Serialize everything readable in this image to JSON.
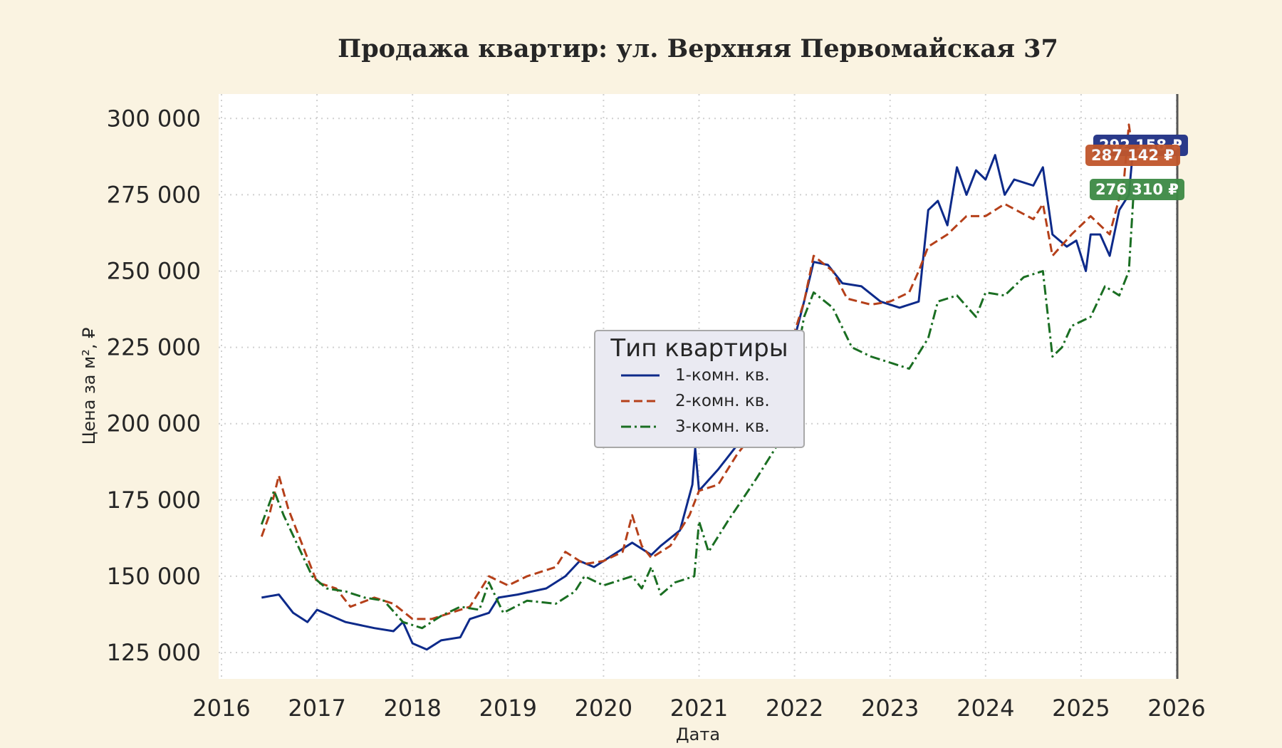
{
  "chart_data": {
    "type": "line",
    "title": "Продажа квартир: ул. Верхняя Первомайская 37",
    "xlabel": "Дата",
    "ylabel": "Цена за м², ₽",
    "xlim": [
      2016,
      2026
    ],
    "ylim": [
      116000,
      305000
    ],
    "xticks": [
      "2016",
      "2017",
      "2018",
      "2019",
      "2020",
      "2021",
      "2022",
      "2023",
      "2024",
      "2025",
      "2026"
    ],
    "yticks": [
      {
        "value": 125000,
        "label": "125 000"
      },
      {
        "value": 150000,
        "label": "150 000"
      },
      {
        "value": 175000,
        "label": "175 000"
      },
      {
        "value": 200000,
        "label": "200 000"
      },
      {
        "value": 225000,
        "label": "225 000"
      },
      {
        "value": 250000,
        "label": "250 000"
      },
      {
        "value": 275000,
        "label": "275 000"
      },
      {
        "value": 300000,
        "label": "300 000"
      }
    ],
    "grid": true,
    "legend": {
      "title": "Тип квартиры",
      "placement": "center"
    },
    "series": [
      {
        "name": "1-комн. кв.",
        "color": "#0d2a8a",
        "dash": "",
        "end_label": "292 158 ₽",
        "end_value": 292000,
        "label_color": "#2a3a8a",
        "points": [
          [
            2016.42,
            143
          ],
          [
            2016.6,
            144
          ],
          [
            2016.75,
            138
          ],
          [
            2016.9,
            135
          ],
          [
            2017.0,
            139
          ],
          [
            2017.3,
            135
          ],
          [
            2017.6,
            133
          ],
          [
            2017.8,
            132
          ],
          [
            2017.9,
            135
          ],
          [
            2018.0,
            128
          ],
          [
            2018.15,
            126
          ],
          [
            2018.3,
            129
          ],
          [
            2018.5,
            130
          ],
          [
            2018.6,
            136
          ],
          [
            2018.8,
            138
          ],
          [
            2018.9,
            143
          ],
          [
            2019.1,
            144
          ],
          [
            2019.4,
            146
          ],
          [
            2019.6,
            150
          ],
          [
            2019.75,
            155
          ],
          [
            2019.9,
            153
          ],
          [
            2020.1,
            157
          ],
          [
            2020.3,
            161
          ],
          [
            2020.5,
            157
          ],
          [
            2020.6,
            160
          ],
          [
            2020.8,
            165
          ],
          [
            2020.93,
            180
          ],
          [
            2020.96,
            192
          ],
          [
            2021.0,
            178
          ],
          [
            2021.2,
            185
          ],
          [
            2021.4,
            193
          ],
          [
            2021.6,
            200
          ],
          [
            2021.8,
            205
          ],
          [
            2022.0,
            228
          ],
          [
            2022.1,
            240
          ],
          [
            2022.2,
            253
          ],
          [
            2022.35,
            252
          ],
          [
            2022.5,
            246
          ],
          [
            2022.7,
            245
          ],
          [
            2022.9,
            240
          ],
          [
            2023.1,
            238
          ],
          [
            2023.3,
            240
          ],
          [
            2023.4,
            270
          ],
          [
            2023.5,
            273
          ],
          [
            2023.6,
            265
          ],
          [
            2023.7,
            284
          ],
          [
            2023.8,
            275
          ],
          [
            2023.9,
            283
          ],
          [
            2024.0,
            280
          ],
          [
            2024.1,
            288
          ],
          [
            2024.2,
            275
          ],
          [
            2024.3,
            280
          ],
          [
            2024.5,
            278
          ],
          [
            2024.6,
            284
          ],
          [
            2024.7,
            262
          ],
          [
            2024.85,
            258
          ],
          [
            2024.95,
            260
          ],
          [
            2025.05,
            250
          ],
          [
            2025.1,
            262
          ],
          [
            2025.2,
            262
          ],
          [
            2025.3,
            255
          ],
          [
            2025.4,
            270
          ],
          [
            2025.5,
            275
          ],
          [
            2025.55,
            292
          ]
        ]
      },
      {
        "name": "2-комн. кв.",
        "color": "#b5401a",
        "dash": "12,6",
        "end_label": "287 142 ₽",
        "end_value": 287142,
        "label_color": "#c0562c",
        "points": [
          [
            2016.42,
            163
          ],
          [
            2016.5,
            170
          ],
          [
            2016.6,
            183
          ],
          [
            2016.7,
            172
          ],
          [
            2016.85,
            160
          ],
          [
            2017.0,
            148
          ],
          [
            2017.2,
            146
          ],
          [
            2017.35,
            140
          ],
          [
            2017.6,
            143
          ],
          [
            2017.8,
            141
          ],
          [
            2018.0,
            136
          ],
          [
            2018.2,
            136
          ],
          [
            2018.4,
            138
          ],
          [
            2018.6,
            140
          ],
          [
            2018.8,
            150
          ],
          [
            2019.0,
            147
          ],
          [
            2019.2,
            150
          ],
          [
            2019.5,
            153
          ],
          [
            2019.6,
            158
          ],
          [
            2019.8,
            154
          ],
          [
            2020.0,
            155
          ],
          [
            2020.2,
            158
          ],
          [
            2020.3,
            170
          ],
          [
            2020.4,
            160
          ],
          [
            2020.5,
            156
          ],
          [
            2020.7,
            160
          ],
          [
            2020.9,
            170
          ],
          [
            2021.0,
            178
          ],
          [
            2021.2,
            180
          ],
          [
            2021.4,
            190
          ],
          [
            2021.6,
            198
          ],
          [
            2021.8,
            207
          ],
          [
            2022.0,
            230
          ],
          [
            2022.1,
            240
          ],
          [
            2022.2,
            255
          ],
          [
            2022.4,
            250
          ],
          [
            2022.55,
            241
          ],
          [
            2022.8,
            239
          ],
          [
            2023.0,
            240
          ],
          [
            2023.2,
            243
          ],
          [
            2023.3,
            250
          ],
          [
            2023.4,
            258
          ],
          [
            2023.6,
            262
          ],
          [
            2023.8,
            268
          ],
          [
            2024.0,
            268
          ],
          [
            2024.2,
            272
          ],
          [
            2024.5,
            267
          ],
          [
            2024.6,
            272
          ],
          [
            2024.7,
            255
          ],
          [
            2024.9,
            262
          ],
          [
            2025.1,
            268
          ],
          [
            2025.3,
            262
          ],
          [
            2025.45,
            280
          ],
          [
            2025.5,
            298
          ],
          [
            2025.55,
            287
          ]
        ]
      },
      {
        "name": "3-комн. кв.",
        "color": "#1a6e22",
        "dash": "14,5,3,5",
        "end_label": "276 310 ₽",
        "end_value": 276310,
        "label_color": "#3d8a45",
        "points": [
          [
            2016.42,
            167
          ],
          [
            2016.55,
            178
          ],
          [
            2016.65,
            170
          ],
          [
            2016.8,
            160
          ],
          [
            2016.95,
            150
          ],
          [
            2017.1,
            146
          ],
          [
            2017.3,
            145
          ],
          [
            2017.5,
            143
          ],
          [
            2017.7,
            142
          ],
          [
            2017.9,
            135
          ],
          [
            2018.1,
            133
          ],
          [
            2018.3,
            137
          ],
          [
            2018.5,
            140
          ],
          [
            2018.7,
            139
          ],
          [
            2018.8,
            148
          ],
          [
            2018.95,
            138
          ],
          [
            2019.2,
            142
          ],
          [
            2019.5,
            141
          ],
          [
            2019.7,
            145
          ],
          [
            2019.8,
            150
          ],
          [
            2020.0,
            147
          ],
          [
            2020.3,
            150
          ],
          [
            2020.4,
            146
          ],
          [
            2020.5,
            153
          ],
          [
            2020.6,
            144
          ],
          [
            2020.75,
            148
          ],
          [
            2020.95,
            150
          ],
          [
            2021.0,
            168
          ],
          [
            2021.1,
            158
          ],
          [
            2021.3,
            168
          ],
          [
            2021.6,
            182
          ],
          [
            2021.8,
            192
          ],
          [
            2022.0,
            218
          ],
          [
            2022.1,
            235
          ],
          [
            2022.2,
            243
          ],
          [
            2022.4,
            238
          ],
          [
            2022.6,
            225
          ],
          [
            2022.8,
            222
          ],
          [
            2023.0,
            220
          ],
          [
            2023.2,
            218
          ],
          [
            2023.4,
            228
          ],
          [
            2023.5,
            240
          ],
          [
            2023.7,
            242
          ],
          [
            2023.9,
            235
          ],
          [
            2024.0,
            243
          ],
          [
            2024.2,
            242
          ],
          [
            2024.4,
            248
          ],
          [
            2024.6,
            250
          ],
          [
            2024.7,
            222
          ],
          [
            2024.8,
            225
          ],
          [
            2024.9,
            232
          ],
          [
            2025.1,
            235
          ],
          [
            2025.25,
            245
          ],
          [
            2025.4,
            242
          ],
          [
            2025.5,
            250
          ],
          [
            2025.55,
            276
          ]
        ]
      }
    ]
  }
}
